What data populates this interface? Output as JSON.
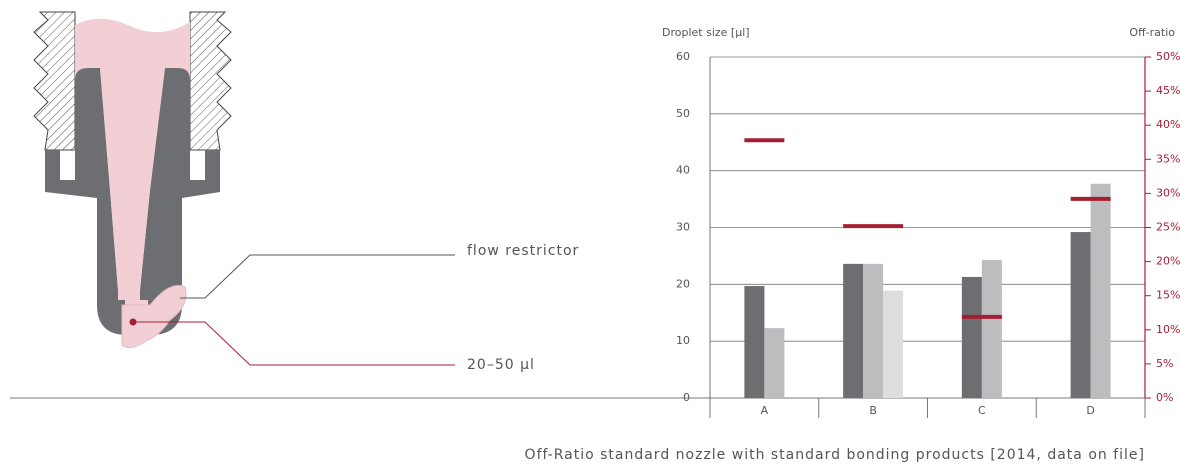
{
  "diagram": {
    "labels": [
      "flow restrictor",
      "20–50 µl"
    ]
  },
  "chart_data": {
    "type": "bar",
    "y_label": "Droplet size [µl]",
    "y2_label": "Off-ratio",
    "caption": "Off-Ratio standard nozzle with standard bonding products [2014, data on file]",
    "categories": [
      "A",
      "B",
      "C",
      "D"
    ],
    "series": [
      {
        "color": "#6d6e72",
        "values": [
          19.7,
          23.6,
          21.3,
          29.2
        ]
      },
      {
        "color": "#bdbdbf",
        "values": [
          12.3,
          23.6,
          24.3,
          37.7
        ]
      },
      {
        "color": "#dddddd",
        "values": [
          null,
          18.9,
          null,
          null
        ]
      },
      {
        "color": "#a51f33",
        "axis": "y2",
        "values": [
          37.8,
          25.2,
          11.9,
          29.2
        ]
      }
    ],
    "ylim": [
      0,
      60
    ],
    "yticks": [
      0,
      10,
      20,
      30,
      40,
      50,
      60
    ],
    "y2lim": [
      0,
      50
    ],
    "y2ticks": [
      {
        "value": 0,
        "label": "0%"
      },
      {
        "value": 5,
        "label": "5%"
      },
      {
        "value": 10,
        "label": "10%"
      },
      {
        "value": 15,
        "label": "15%"
      },
      {
        "value": 20,
        "label": "20%"
      },
      {
        "value": 25,
        "label": "25%"
      },
      {
        "value": 30,
        "label": "30%"
      },
      {
        "value": 35,
        "label": "35%"
      },
      {
        "value": 40,
        "label": "40%"
      },
      {
        "value": 45,
        "label": "45%"
      },
      {
        "value": 50,
        "label": "50%"
      }
    ],
    "grid": true
  }
}
